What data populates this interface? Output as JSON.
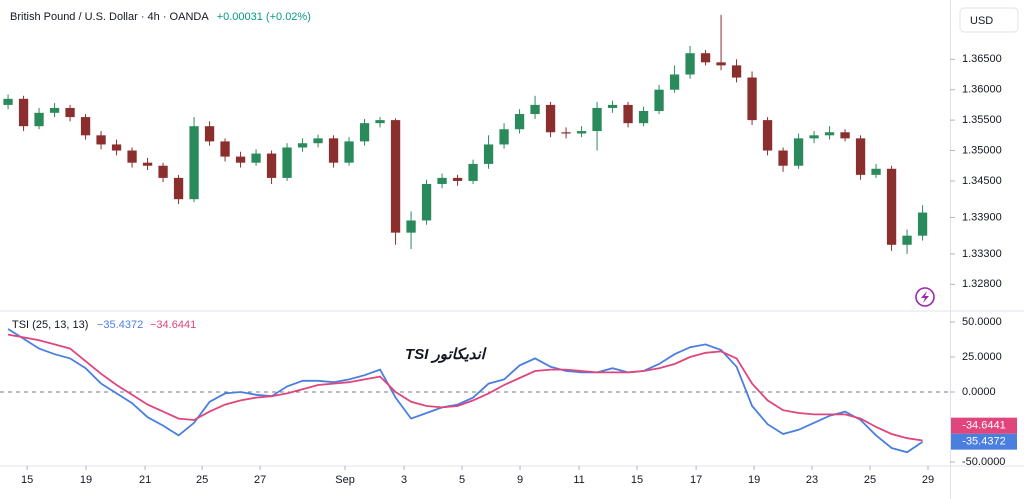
{
  "chart_data": [
    {
      "type": "candlestick",
      "title": "British Pound / U.S. Dollar · 4h · OANDA",
      "change": "+0.00031 (+0.02%)",
      "currency": "USD",
      "up_color": "#2a8a5c",
      "down_color": "#8b2e2e",
      "x": [
        0,
        1,
        2,
        3,
        4,
        5,
        6,
        7,
        8,
        9,
        10,
        11,
        12,
        13,
        14,
        15,
        16,
        17,
        18,
        19,
        20,
        21,
        22,
        23,
        24,
        25,
        26,
        27,
        28,
        29,
        30,
        31,
        32,
        33,
        34,
        35,
        36,
        37,
        38,
        39,
        40,
        41,
        42,
        43,
        44,
        45,
        46,
        47,
        48,
        49,
        50,
        51,
        52,
        53,
        54,
        55,
        56,
        57,
        58,
        59
      ],
      "open": [
        1.3575,
        1.3585,
        1.354,
        1.3562,
        1.357,
        1.3555,
        1.3525,
        1.351,
        1.35,
        1.348,
        1.3475,
        1.3455,
        1.342,
        1.354,
        1.3515,
        1.349,
        1.348,
        1.3495,
        1.3455,
        1.3505,
        1.3512,
        1.352,
        1.348,
        1.3515,
        1.3545,
        1.355,
        1.3365,
        1.3385,
        1.3445,
        1.3455,
        1.345,
        1.3478,
        1.351,
        1.3535,
        1.356,
        1.3575,
        1.353,
        1.3528,
        1.3532,
        1.357,
        1.3575,
        1.3545,
        1.3565,
        1.36,
        1.3625,
        1.366,
        1.3645,
        1.364,
        1.362,
        1.355,
        1.35,
        1.3475,
        1.352,
        1.3525,
        1.353,
        1.352,
        1.346,
        1.347,
        1.3345,
        1.336
      ],
      "high": [
        1.3592,
        1.359,
        1.357,
        1.3578,
        1.3575,
        1.356,
        1.3532,
        1.3518,
        1.3505,
        1.3488,
        1.348,
        1.346,
        1.3555,
        1.3548,
        1.352,
        1.3498,
        1.3502,
        1.35,
        1.3512,
        1.352,
        1.3526,
        1.3525,
        1.3522,
        1.3552,
        1.3555,
        1.3553,
        1.34,
        1.3452,
        1.3462,
        1.346,
        1.3485,
        1.3525,
        1.3545,
        1.3568,
        1.359,
        1.358,
        1.3538,
        1.354,
        1.358,
        1.3582,
        1.358,
        1.3572,
        1.3608,
        1.364,
        1.3672,
        1.3665,
        1.3723,
        1.365,
        1.363,
        1.3555,
        1.3505,
        1.3528,
        1.3532,
        1.354,
        1.3535,
        1.3525,
        1.3478,
        1.3475,
        1.337,
        1.341
      ],
      "low": [
        1.3568,
        1.3532,
        1.3535,
        1.3555,
        1.3548,
        1.3518,
        1.3502,
        1.3492,
        1.3472,
        1.3468,
        1.3448,
        1.3412,
        1.3415,
        1.3508,
        1.3482,
        1.3472,
        1.3475,
        1.3445,
        1.345,
        1.3498,
        1.3505,
        1.3472,
        1.3475,
        1.3508,
        1.3538,
        1.3345,
        1.3338,
        1.3378,
        1.3438,
        1.3442,
        1.3445,
        1.347,
        1.3503,
        1.3528,
        1.3552,
        1.3522,
        1.352,
        1.3522,
        1.35,
        1.3562,
        1.3538,
        1.354,
        1.356,
        1.3595,
        1.3618,
        1.364,
        1.3632,
        1.3612,
        1.3542,
        1.3492,
        1.3465,
        1.347,
        1.3512,
        1.3518,
        1.3515,
        1.3452,
        1.3455,
        1.3335,
        1.333,
        1.3352
      ],
      "close": [
        1.3585,
        1.354,
        1.3562,
        1.357,
        1.3555,
        1.3525,
        1.351,
        1.35,
        1.348,
        1.3475,
        1.3455,
        1.342,
        1.354,
        1.3515,
        1.349,
        1.348,
        1.3495,
        1.3455,
        1.3505,
        1.3512,
        1.352,
        1.348,
        1.3515,
        1.3545,
        1.355,
        1.3365,
        1.3385,
        1.3445,
        1.3455,
        1.345,
        1.3478,
        1.351,
        1.3535,
        1.356,
        1.3575,
        1.353,
        1.3528,
        1.3532,
        1.357,
        1.3575,
        1.3545,
        1.3565,
        1.36,
        1.3625,
        1.366,
        1.3645,
        1.364,
        1.362,
        1.355,
        1.35,
        1.3475,
        1.352,
        1.3525,
        1.353,
        1.352,
        1.346,
        1.347,
        1.3345,
        1.336,
        1.3398
      ],
      "xlim": [
        -0.52,
        60.77
      ],
      "ylim": [
        1.32378,
        1.37442
      ],
      "yticks": [
        {
          "value": 1.365,
          "label": "1.36500"
        },
        {
          "value": 1.36,
          "label": "1.36000"
        },
        {
          "value": 1.355,
          "label": "1.35500"
        },
        {
          "value": 1.35,
          "label": "1.35000"
        },
        {
          "value": 1.345,
          "label": "1.34500"
        },
        {
          "value": 1.339,
          "label": "1.33900"
        },
        {
          "value": 1.333,
          "label": "1.33300"
        },
        {
          "value": 1.328,
          "label": "1.32800"
        }
      ],
      "grid": false
    },
    {
      "type": "line",
      "title": "TSI (25, 13, 13)",
      "annotation": "اندیکاتور TSI",
      "x": [
        0,
        1,
        2,
        3,
        4,
        5,
        6,
        7,
        8,
        9,
        10,
        11,
        12,
        13,
        14,
        15,
        16,
        17,
        18,
        19,
        20,
        21,
        22,
        23,
        24,
        25,
        26,
        27,
        28,
        29,
        30,
        31,
        32,
        33,
        34,
        35,
        36,
        37,
        38,
        39,
        40,
        41,
        42,
        43,
        44,
        45,
        46,
        47,
        48,
        49,
        50,
        51,
        52,
        53,
        54,
        55,
        56,
        57,
        58,
        59
      ],
      "series": [
        {
          "color": "#4a7fe0",
          "legend_label": "−35.4372",
          "badge_label": "-35.4372",
          "values": [
            45,
            38,
            31,
            27,
            24,
            17,
            6,
            -1,
            -8,
            -18,
            -24,
            -31,
            -22,
            -7,
            -1,
            0,
            -2,
            -3,
            4,
            8,
            8,
            7,
            9,
            12,
            16,
            -4,
            -19,
            -15,
            -11,
            -9,
            -4,
            6,
            9,
            19,
            24,
            18,
            15,
            14,
            14,
            17,
            14,
            15,
            20,
            27,
            32,
            34,
            30,
            18,
            -10,
            -23,
            -30,
            -27,
            -22,
            -17,
            -14,
            -20,
            -31,
            -40,
            -43,
            -35.4372
          ]
        },
        {
          "color": "#e0457b",
          "legend_label": "−34.6441",
          "badge_label": "-34.6441",
          "values": [
            41,
            39,
            37,
            34,
            31,
            22,
            13,
            5,
            -2,
            -9,
            -14,
            -19,
            -20,
            -14,
            -9,
            -6,
            -4,
            -3,
            -1,
            2,
            5,
            6,
            7,
            9,
            11,
            0,
            -7,
            -10,
            -11,
            -10,
            -6,
            -1,
            5,
            10,
            15,
            16,
            16,
            15,
            14,
            14,
            14,
            15,
            17,
            20,
            25,
            28,
            29,
            24,
            6,
            -6,
            -13,
            -15,
            -16,
            -16,
            -16,
            -19,
            -25,
            -30,
            -33,
            -34.6441
          ]
        }
      ],
      "xlim": [
        -0.52,
        60.77
      ],
      "ylim": [
        -52.1,
        57.1
      ],
      "yticks": [
        {
          "value": 50,
          "label": "50.0000"
        },
        {
          "value": 25,
          "label": "25.0000"
        },
        {
          "value": 0,
          "label": "0.0000"
        },
        {
          "value": -50,
          "label": "-50.0000"
        }
      ],
      "zero_line": 0,
      "grid": false,
      "xticks": [
        {
          "value": 1.23,
          "label": "15"
        },
        {
          "value": 5.03,
          "label": "19"
        },
        {
          "value": 8.84,
          "label": "21"
        },
        {
          "value": 12.52,
          "label": "25"
        },
        {
          "value": 16.26,
          "label": "27"
        },
        {
          "value": 21.74,
          "label": "Sep"
        },
        {
          "value": 25.55,
          "label": "3"
        },
        {
          "value": 29.29,
          "label": "5"
        },
        {
          "value": 33.03,
          "label": "9"
        },
        {
          "value": 36.84,
          "label": "11"
        },
        {
          "value": 40.58,
          "label": "15"
        },
        {
          "value": 44.39,
          "label": "17"
        },
        {
          "value": 48.13,
          "label": "19"
        },
        {
          "value": 51.87,
          "label": "23"
        },
        {
          "value": 55.61,
          "label": "25"
        },
        {
          "value": 59.35,
          "label": "29"
        }
      ]
    }
  ]
}
